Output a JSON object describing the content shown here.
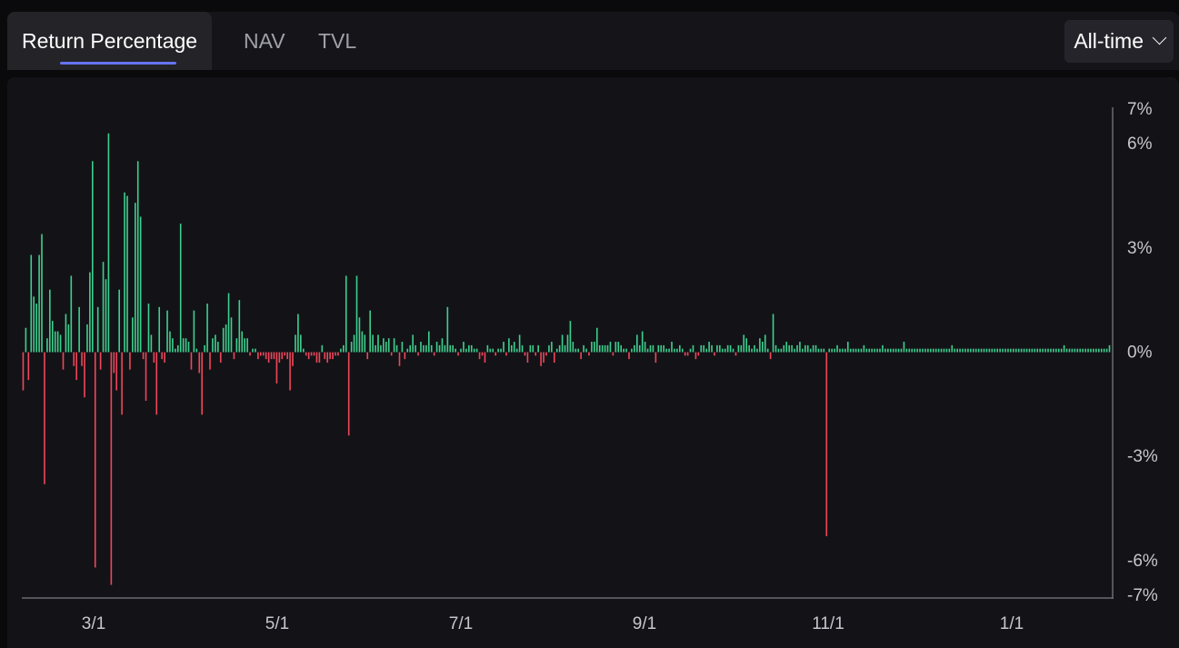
{
  "tabs": [
    {
      "label": "Return Percentage",
      "active": true
    },
    {
      "label": "NAV",
      "active": false
    },
    {
      "label": "TVL",
      "active": false
    }
  ],
  "range_selector": {
    "value": "All-time"
  },
  "colors": {
    "positive": "#3ecf8e",
    "negative": "#f0465a",
    "accent": "#6673f0"
  },
  "chart_data": {
    "type": "bar",
    "title": "",
    "xlabel": "",
    "ylabel": "",
    "ylim": [
      -7,
      7
    ],
    "y_ticks": [
      "7%",
      "6%",
      "3%",
      "0%",
      "-3%",
      "-6%",
      "-7%"
    ],
    "y_tick_values": [
      7,
      6,
      3,
      0,
      -3,
      -6,
      -7
    ],
    "x_ticks": [
      "3/1",
      "5/1",
      "7/1",
      "9/1",
      "11/1",
      "1/1"
    ],
    "grid": false,
    "legend": "none",
    "series": [
      {
        "values": [
          -1.1,
          0.7,
          -0.8,
          2.8,
          1.6,
          1.4,
          2.8,
          3.4,
          -3.8,
          0.4,
          1.8,
          0.9,
          0.6,
          0.6,
          0.5,
          -0.5,
          1.1,
          0.8,
          2.2,
          -0.4,
          -0.8,
          1.3,
          -0.4,
          -1.3,
          0.8,
          2.3,
          5.5,
          -6.2,
          1.3,
          -0.5,
          2.6,
          2.1,
          6.3,
          -6.7,
          -0.6,
          -1.1,
          1.8,
          -1.8,
          4.6,
          4.5,
          -0.5,
          1.0,
          4.3,
          5.5,
          3.9,
          -0.2,
          -1.4,
          1.4,
          0.5,
          -0.3,
          -1.8,
          1.3,
          -0.2,
          -0.3,
          1.2,
          0.6,
          0.4,
          0.1,
          0.2,
          3.7,
          0.4,
          0.4,
          0.3,
          -0.5,
          1.2,
          0.1,
          -0.6,
          -1.8,
          0.2,
          1.4,
          -0.5,
          0.4,
          0.5,
          0.3,
          -0.3,
          0.7,
          0.8,
          1.7,
          1.0,
          -0.2,
          0.4,
          1.5,
          0.6,
          0.4,
          0.4,
          -0.1,
          0.1,
          0.1,
          -0.2,
          -0.1,
          -0.1,
          -0.2,
          -0.3,
          -0.2,
          -0.2,
          -0.9,
          -0.3,
          -0.2,
          -0.1,
          -0.2,
          -1.1,
          -0.4,
          0.5,
          1.1,
          0.5,
          0.1,
          -0.1,
          -0.2,
          -0.1,
          -0.1,
          -0.3,
          -0.3,
          0.2,
          -0.2,
          -0.3,
          -0.2,
          -0.2,
          -0.1,
          -0.1,
          0.1,
          0.2,
          2.2,
          -2.4,
          0.3,
          0.5,
          2.2,
          1.0,
          0.6,
          0.5,
          -0.2,
          1.2,
          0.5,
          0.2,
          0.5,
          0.2,
          0.4,
          0.3,
          0.4,
          -0.1,
          0.4,
          0.2,
          -0.4,
          0.3,
          -0.2,
          0.1,
          0.2,
          0.5,
          0.2,
          -0.1,
          0.3,
          0.2,
          0.2,
          0.6,
          0.2,
          -0.1,
          0.3,
          0.2,
          0.4,
          0.2,
          1.3,
          0.2,
          0.2,
          0.1,
          -0.1,
          0.1,
          0.3,
          0.1,
          0.2,
          0.2,
          0.1,
          0.1,
          -0.2,
          -0.1,
          -0.3,
          0.2,
          0.1,
          0.1,
          -0.1,
          0.1,
          0.1,
          0.3,
          -0.1,
          0.4,
          0.2,
          0.3,
          0.1,
          0.5,
          0.2,
          -0.1,
          -0.3,
          0.2,
          0.2,
          -0.1,
          0.2,
          -0.4,
          -0.3,
          -0.1,
          0.2,
          0.3,
          -0.3,
          0.1,
          0.2,
          0.5,
          0.2,
          0.5,
          0.9,
          0.3,
          0.1,
          0.1,
          -0.2,
          0.2,
          0.1,
          -0.1,
          0.3,
          0.3,
          0.7,
          0.2,
          0.2,
          0.2,
          0.2,
          0.3,
          -0.1,
          0.3,
          0.3,
          0.2,
          0.1,
          0.1,
          -0.2,
          0.1,
          0.2,
          0.5,
          0.2,
          0.6,
          0.3,
          0.1,
          0.2,
          0.2,
          -0.3,
          0.2,
          0.2,
          0.2,
          0.1,
          0.1,
          0.3,
          0.1,
          0.1,
          0.2,
          0.1,
          -0.1,
          -0.1,
          0.1,
          0.2,
          -0.2,
          -0.1,
          0.2,
          0.2,
          0.1,
          0.3,
          0.2,
          -0.1,
          0.2,
          0.2,
          0.1,
          0.1,
          0.2,
          0.2,
          0.1,
          -0.1,
          0.2,
          0.2,
          0.5,
          0.4,
          0.2,
          0.1,
          0.2,
          0.1,
          0.4,
          0.3,
          0.5,
          0.1,
          -0.2,
          1.1,
          0.2,
          0.1,
          0.1,
          0.2,
          0.3,
          0.2,
          0.2,
          0.1,
          0.2,
          0.3,
          0.1,
          0.2,
          0.2,
          0.1,
          0.2,
          0.2,
          0.1,
          0.1,
          0.1,
          -5.3,
          0.1,
          0.1,
          0.1,
          0.2,
          0.1,
          0.1,
          0.1,
          0.3,
          0.1,
          0.1,
          0.1,
          0.1,
          0.1,
          0.2,
          0.1,
          0.1,
          0.1,
          0.1,
          0.1,
          0.1,
          0.2,
          0.1,
          0.1,
          0.1,
          0.1,
          0.1,
          0.1,
          0.1,
          0.3,
          0.1,
          0.1,
          0.1,
          0.1,
          0.1,
          0.1,
          0.1,
          0.1,
          0.1,
          0.1,
          0.1,
          0.1,
          0.1,
          0.1,
          0.1,
          0.1,
          0.1,
          0.2,
          0.1,
          0.1,
          0.1,
          0.1,
          0.1,
          0.1,
          0.1,
          0.1,
          0.1,
          0.1,
          0.1,
          0.1,
          0.1,
          0.1,
          0.1,
          0.1,
          0.1,
          0.1,
          0.1,
          0.1,
          0.1,
          0.1,
          0.1,
          0.1,
          0.1,
          0.1,
          0.1,
          0.1,
          0.1,
          0.1,
          0.1,
          0.1,
          0.1,
          0.1,
          0.1,
          0.1,
          0.1,
          0.1,
          0.1,
          0.1,
          0.1,
          0.2,
          0.1,
          0.1,
          0.1,
          0.1,
          0.1,
          0.1,
          0.1,
          0.1,
          0.1,
          0.1,
          0.1,
          0.1,
          0.1,
          0.1,
          0.1,
          0.1,
          0.2
        ]
      }
    ]
  }
}
